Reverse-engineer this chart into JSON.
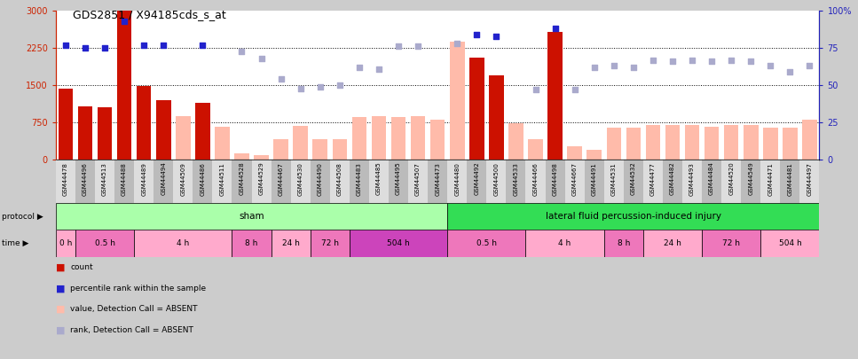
{
  "title": "GDS2851 / X94185cds_s_at",
  "samples": [
    "GSM44478",
    "GSM44496",
    "GSM44513",
    "GSM44488",
    "GSM44489",
    "GSM44494",
    "GSM44509",
    "GSM44486",
    "GSM44511",
    "GSM44528",
    "GSM44529",
    "GSM44467",
    "GSM44530",
    "GSM44490",
    "GSM44508",
    "GSM44483",
    "GSM44485",
    "GSM44495",
    "GSM44507",
    "GSM44473",
    "GSM44480",
    "GSM44492",
    "GSM44500",
    "GSM44533",
    "GSM44466",
    "GSM44498",
    "GSM44667",
    "GSM44491",
    "GSM44531",
    "GSM44532",
    "GSM44477",
    "GSM44482",
    "GSM44493",
    "GSM44484",
    "GSM44520",
    "GSM44549",
    "GSM44471",
    "GSM44481",
    "GSM44497"
  ],
  "bar_values": [
    1430,
    1080,
    1060,
    3000,
    1480,
    1200,
    null,
    1150,
    null,
    null,
    null,
    null,
    null,
    null,
    null,
    null,
    null,
    null,
    null,
    null,
    null,
    2050,
    1700,
    null,
    null,
    2580,
    null,
    null,
    null,
    null,
    null,
    null,
    null,
    null,
    null,
    null,
    null,
    null,
    null
  ],
  "bar_absent_values": [
    null,
    null,
    null,
    null,
    null,
    null,
    870,
    null,
    670,
    130,
    100,
    420,
    680,
    410,
    420,
    860,
    870,
    860,
    870,
    810,
    2370,
    null,
    null,
    730,
    420,
    null,
    280,
    200,
    640,
    640,
    700,
    700,
    700,
    670,
    700,
    700,
    640,
    640,
    800
  ],
  "rank_present": [
    77,
    75,
    75,
    93,
    77,
    77,
    null,
    77,
    null,
    null,
    null,
    null,
    null,
    null,
    null,
    null,
    null,
    null,
    null,
    null,
    null,
    84,
    83,
    null,
    null,
    88,
    null,
    null,
    null,
    null,
    null,
    null,
    null,
    null,
    null,
    null,
    null,
    null,
    null
  ],
  "rank_absent": [
    null,
    null,
    null,
    null,
    null,
    null,
    null,
    null,
    null,
    73,
    68,
    54,
    48,
    49,
    50,
    62,
    61,
    76,
    76,
    null,
    78,
    null,
    null,
    null,
    47,
    null,
    47,
    62,
    63,
    62,
    67,
    66,
    67,
    66,
    67,
    66,
    63,
    59,
    63
  ],
  "protocol_groups": [
    {
      "label": "sham",
      "start": 0,
      "end": 20,
      "color": "#AAFFAA"
    },
    {
      "label": "lateral fluid percussion-induced injury",
      "start": 20,
      "end": 39,
      "color": "#33DD55"
    }
  ],
  "time_groups": [
    {
      "label": "0 h",
      "start": 0,
      "end": 1,
      "color": "#FFAACC"
    },
    {
      "label": "0.5 h",
      "start": 1,
      "end": 4,
      "color": "#EE77BB"
    },
    {
      "label": "4 h",
      "start": 4,
      "end": 9,
      "color": "#FFAACC"
    },
    {
      "label": "8 h",
      "start": 9,
      "end": 11,
      "color": "#EE77BB"
    },
    {
      "label": "24 h",
      "start": 11,
      "end": 13,
      "color": "#FFAACC"
    },
    {
      "label": "72 h",
      "start": 13,
      "end": 15,
      "color": "#EE77BB"
    },
    {
      "label": "504 h",
      "start": 15,
      "end": 20,
      "color": "#CC44BB"
    },
    {
      "label": "0.5 h",
      "start": 20,
      "end": 24,
      "color": "#EE77BB"
    },
    {
      "label": "4 h",
      "start": 24,
      "end": 28,
      "color": "#FFAACC"
    },
    {
      "label": "8 h",
      "start": 28,
      "end": 30,
      "color": "#EE77BB"
    },
    {
      "label": "24 h",
      "start": 30,
      "end": 33,
      "color": "#FFAACC"
    },
    {
      "label": "72 h",
      "start": 33,
      "end": 36,
      "color": "#EE77BB"
    },
    {
      "label": "504 h",
      "start": 36,
      "end": 39,
      "color": "#FFAACC"
    }
  ],
  "ylim_left": [
    0,
    3000
  ],
  "ylim_right": [
    0,
    100
  ],
  "yticks_left": [
    0,
    750,
    1500,
    2250,
    3000
  ],
  "yticks_right": [
    0,
    25,
    50,
    75,
    100
  ],
  "bar_color_present": "#CC1100",
  "bar_color_absent": "#FFBBAA",
  "rank_color_present": "#2222CC",
  "rank_color_absent": "#AAAACC",
  "bg_color": "#CCCCCC",
  "plot_bg": "#FFFFFF",
  "left_axis_color": "#CC2200",
  "right_axis_color": "#2222BB",
  "xtick_bg_even": "#DDDDDD",
  "xtick_bg_odd": "#BBBBBB"
}
